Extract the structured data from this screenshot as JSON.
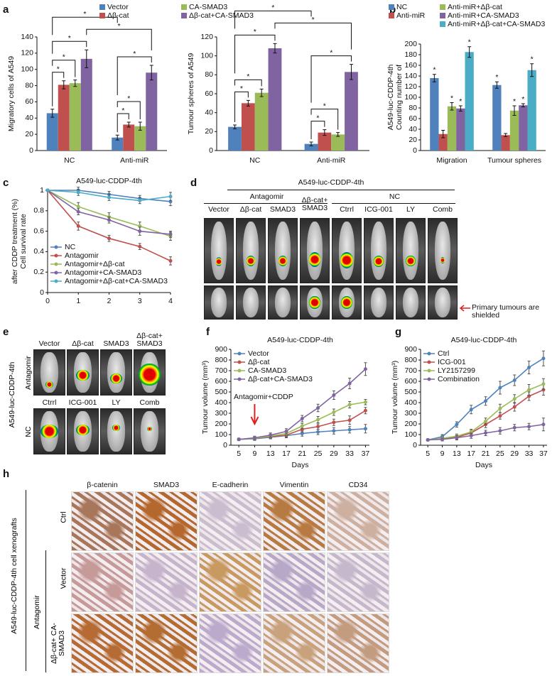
{
  "panel_labels": [
    "a",
    "b",
    "c",
    "d",
    "e",
    "f",
    "g",
    "h"
  ],
  "chart_data": [
    {
      "type": "bar",
      "ylabel": "Migratory cells of A549",
      "categories": [
        "NC",
        "Anti-miR"
      ],
      "ylim": [
        0,
        140
      ],
      "yticks": [
        0,
        20,
        40,
        60,
        80,
        100,
        120,
        140
      ],
      "legend": "top",
      "series": [
        {
          "name": "Vector",
          "color": "#4f81bd",
          "values": [
            46,
            16
          ],
          "errors": [
            5,
            3
          ]
        },
        {
          "name": "Δβ-cat",
          "color": "#c0504d",
          "values": [
            81,
            32
          ],
          "errors": [
            5,
            3
          ]
        },
        {
          "name": "CA-SMAD3",
          "color": "#9bbb59",
          "values": [
            83,
            30
          ],
          "errors": [
            4,
            5
          ]
        },
        {
          "name": "Δβ-cat+CA-SMAD3",
          "color": "#8064a2",
          "values": [
            113,
            96
          ],
          "errors": [
            11,
            9
          ]
        }
      ],
      "brackets": [
        {
          "from": [
            0,
            0
          ],
          "to": [
            0,
            1
          ],
          "label": "*"
        },
        {
          "from": [
            0,
            0
          ],
          "to": [
            0,
            2
          ],
          "label": "*"
        },
        {
          "from": [
            0,
            0
          ],
          "to": [
            0,
            3
          ],
          "label": "*"
        },
        {
          "from": [
            1,
            0
          ],
          "to": [
            1,
            1
          ],
          "label": "*"
        },
        {
          "from": [
            1,
            0
          ],
          "to": [
            1,
            2
          ],
          "label": "*"
        },
        {
          "from": [
            1,
            0
          ],
          "to": [
            1,
            3
          ],
          "label": "*"
        },
        {
          "from": [
            0,
            3
          ],
          "to": [
            1,
            3
          ],
          "label": "*"
        },
        {
          "from": [
            0,
            0
          ],
          "to": [
            1,
            0
          ],
          "label": "*"
        }
      ]
    },
    {
      "type": "bar",
      "ylabel": "Tumour spheres of A549",
      "categories": [
        "NC",
        "Anti-miR"
      ],
      "ylim": [
        0,
        120
      ],
      "yticks": [
        0,
        20,
        40,
        60,
        80,
        100,
        120
      ],
      "series": [
        {
          "color": "#4f81bd",
          "values": [
            25,
            7
          ],
          "errors": [
            2,
            2
          ]
        },
        {
          "color": "#c0504d",
          "values": [
            50,
            19
          ],
          "errors": [
            3,
            3
          ]
        },
        {
          "color": "#9bbb59",
          "values": [
            61,
            17
          ],
          "errors": [
            4,
            2
          ]
        },
        {
          "color": "#8064a2",
          "values": [
            108,
            83
          ],
          "errors": [
            5,
            8
          ]
        }
      ],
      "brackets": [
        {
          "from": [
            0,
            0
          ],
          "to": [
            0,
            1
          ],
          "label": "*"
        },
        {
          "from": [
            0,
            0
          ],
          "to": [
            0,
            2
          ],
          "label": "*"
        },
        {
          "from": [
            0,
            0
          ],
          "to": [
            0,
            3
          ],
          "label": "*"
        },
        {
          "from": [
            1,
            0
          ],
          "to": [
            1,
            1
          ],
          "label": "*"
        },
        {
          "from": [
            1,
            0
          ],
          "to": [
            1,
            2
          ],
          "label": "*"
        },
        {
          "from": [
            1,
            0
          ],
          "to": [
            1,
            3
          ],
          "label": "*"
        },
        {
          "from": [
            0,
            3
          ],
          "to": [
            1,
            3
          ],
          "label": "*"
        },
        {
          "from": [
            0,
            0
          ],
          "to": [
            1,
            0
          ],
          "label": "*"
        }
      ]
    },
    {
      "type": "bar",
      "ylabel": [
        "Counting number of",
        "A549-luc-CDDP-4th"
      ],
      "categories": [
        "Migration",
        "Tumour spheres"
      ],
      "ylim": [
        0,
        200
      ],
      "yticks": [
        0,
        20,
        40,
        60,
        80,
        100,
        120,
        140,
        160,
        180,
        200
      ],
      "legend": "top",
      "series": [
        {
          "name": "NC",
          "color": "#4f81bd",
          "values": [
            136,
            123
          ],
          "errors": [
            7,
            6
          ],
          "annotations": [
            "*",
            "*"
          ]
        },
        {
          "name": "Anti-miR",
          "color": "#c0504d",
          "values": [
            31,
            29
          ],
          "errors": [
            7,
            3
          ],
          "annotations": [
            null,
            null
          ]
        },
        {
          "name": "Anti-miR+Δβ-cat",
          "color": "#9bbb59",
          "values": [
            83,
            75
          ],
          "errors": [
            7,
            9
          ],
          "annotations": [
            "*",
            "*"
          ]
        },
        {
          "name": "Anti-miR+CA-SMAD3",
          "color": "#8064a2",
          "values": [
            79,
            85
          ],
          "errors": [
            5,
            3
          ],
          "annotations": [
            "*",
            "*"
          ]
        },
        {
          "name": "Anti-miR+Δβ-cat+CA-SMAD3",
          "color": "#4bacc6",
          "values": [
            185,
            151
          ],
          "errors": [
            10,
            12
          ],
          "annotations": [
            "*",
            "*"
          ]
        }
      ]
    },
    {
      "type": "line",
      "title": "A549-luc-CDDP-4th",
      "ylabel": [
        "Cell survival rate",
        "after CDDP treatment (%)"
      ],
      "x": [
        0,
        1,
        2,
        3,
        4
      ],
      "xlim": [
        0,
        4
      ],
      "xticks": [
        0,
        1,
        2,
        3,
        4
      ],
      "ylim": [
        0,
        1
      ],
      "yticks": [
        0,
        0.2,
        0.4,
        0.6,
        0.8,
        1
      ],
      "legend": "lower left",
      "series": [
        {
          "name": "NC",
          "color": "#4f81bd",
          "values": [
            1,
            1.0,
            0.96,
            0.92,
            0.89
          ],
          "errors": [
            0,
            0.03,
            0.03,
            0.03,
            0.04
          ]
        },
        {
          "name": "Antagomir",
          "color": "#c0504d",
          "values": [
            1,
            0.65,
            0.53,
            0.45,
            0.31
          ],
          "errors": [
            0,
            0.04,
            0.03,
            0.03,
            0.04
          ]
        },
        {
          "name": "Antagomir+Δβ-cat",
          "color": "#9bbb59",
          "values": [
            1,
            0.84,
            0.74,
            0.65,
            0.55
          ],
          "errors": [
            0,
            0.04,
            0.04,
            0.04,
            0.04
          ]
        },
        {
          "name": "Antagomir+CA-SMAD3",
          "color": "#8064a2",
          "values": [
            1,
            0.79,
            0.71,
            0.6,
            0.57
          ],
          "errors": [
            0,
            0.03,
            0.03,
            0.04,
            0.03
          ]
        },
        {
          "name": "Antagomir+Δβ-cat+CA-SMAD3",
          "color": "#4bacc6",
          "values": [
            1,
            0.98,
            0.93,
            0.9,
            0.94
          ],
          "errors": [
            0,
            0.03,
            0.03,
            0.03,
            0.04
          ]
        }
      ]
    },
    {
      "type": "line",
      "title": "A549-luc-CDDP-4th",
      "xlabel": "Days",
      "ylabel": "Tumour volume (mm³)",
      "x": [
        5,
        9,
        13,
        17,
        21,
        25,
        29,
        33,
        37
      ],
      "xlim": [
        3,
        38
      ],
      "xticks": [
        5,
        9,
        13,
        17,
        21,
        25,
        29,
        33,
        37
      ],
      "ylim": [
        0,
        900
      ],
      "yticks": [
        0,
        100,
        200,
        300,
        400,
        500,
        600,
        700,
        800,
        900
      ],
      "legend": "upper left",
      "annotation": {
        "text": "Antagomir+CDDP",
        "x": 9
      },
      "series": [
        {
          "name": "Vector",
          "color": "#4f81bd",
          "values": [
            55,
            60,
            75,
            90,
            110,
            125,
            135,
            145,
            155
          ],
          "errors": [
            10,
            15,
            15,
            20,
            25,
            25,
            30,
            30,
            40
          ]
        },
        {
          "name": "Δβ-cat",
          "color": "#c0504d",
          "values": [
            55,
            65,
            80,
            95,
            150,
            175,
            215,
            235,
            325
          ],
          "errors": [
            10,
            15,
            15,
            20,
            25,
            25,
            30,
            40,
            30
          ]
        },
        {
          "name": "CA-SMAD3",
          "color": "#9bbb59",
          "values": [
            55,
            65,
            85,
            110,
            180,
            240,
            310,
            380,
            405
          ],
          "errors": [
            10,
            15,
            15,
            20,
            25,
            30,
            30,
            30,
            25
          ]
        },
        {
          "name": "Δβ-cat+CA-SMAD3",
          "color": "#8064a2",
          "values": [
            55,
            70,
            95,
            130,
            250,
            350,
            470,
            580,
            715
          ],
          "errors": [
            10,
            15,
            20,
            25,
            30,
            35,
            40,
            50,
            60
          ]
        }
      ]
    },
    {
      "type": "line",
      "title": "A549-luc-CDDP-4th",
      "xlabel": "Days",
      "ylabel": "Tumour volume (mm³)",
      "x": [
        5,
        9,
        13,
        17,
        21,
        25,
        29,
        33,
        37
      ],
      "xlim": [
        3,
        38
      ],
      "xticks": [
        5,
        9,
        13,
        17,
        21,
        25,
        29,
        33,
        37
      ],
      "ylim": [
        0,
        900
      ],
      "yticks": [
        0,
        100,
        200,
        300,
        400,
        500,
        600,
        700,
        800,
        900
      ],
      "legend": "upper left",
      "series": [
        {
          "name": "Ctrl",
          "color": "#4f81bd",
          "values": [
            50,
            80,
            195,
            335,
            415,
            540,
            610,
            730,
            815
          ],
          "errors": [
            10,
            20,
            25,
            40,
            40,
            60,
            50,
            60,
            70
          ]
        },
        {
          "name": "ICG-001",
          "color": "#c0504d",
          "values": [
            50,
            60,
            75,
            115,
            195,
            275,
            360,
            460,
            520
          ],
          "errors": [
            10,
            15,
            20,
            25,
            30,
            30,
            40,
            40,
            50
          ]
        },
        {
          "name": "LY2157299",
          "color": "#9bbb59",
          "values": [
            50,
            65,
            85,
            125,
            225,
            345,
            435,
            520,
            575
          ],
          "errors": [
            10,
            15,
            20,
            25,
            30,
            40,
            40,
            50,
            50
          ]
        },
        {
          "name": "Combination",
          "color": "#8064a2",
          "values": [
            50,
            55,
            70,
            90,
            115,
            135,
            165,
            175,
            195
          ],
          "errors": [
            10,
            15,
            20,
            25,
            25,
            30,
            30,
            30,
            60
          ]
        }
      ]
    }
  ],
  "panel_d": {
    "title": "A549-luc-CDDP-4th",
    "groups": [
      "Antagomir",
      "NC"
    ],
    "columns": [
      "Vector",
      "Δβ-cat",
      "SMAD3",
      "Δβ-cat+ SMAD3",
      "Ctrrl",
      "ICG-001",
      "LY",
      "Comb"
    ],
    "note": "Primary tumours are shielded"
  },
  "panel_e": {
    "side_label": "A549-luc-CDDP-4th",
    "rows": [
      {
        "label": "Antagomir",
        "columns": [
          "Vector",
          "Δβ-cat",
          "SMAD3",
          "Δβ-cat+ SMAD3"
        ]
      },
      {
        "label": "NC",
        "columns": [
          "Ctrrl",
          "ICG-001",
          "LY",
          "Comb"
        ]
      }
    ]
  },
  "panel_h": {
    "side_label": "A549-luc-CDDP-4th cell xenografts",
    "group_label": "Antagomir",
    "columns": [
      "β-catenin",
      "SMAD3",
      "E-cadherin",
      "Vimentin",
      "CD34"
    ],
    "rows": [
      "Ctrl",
      "Vector",
      "Δβ-cat+ CA-SMAD3"
    ]
  }
}
